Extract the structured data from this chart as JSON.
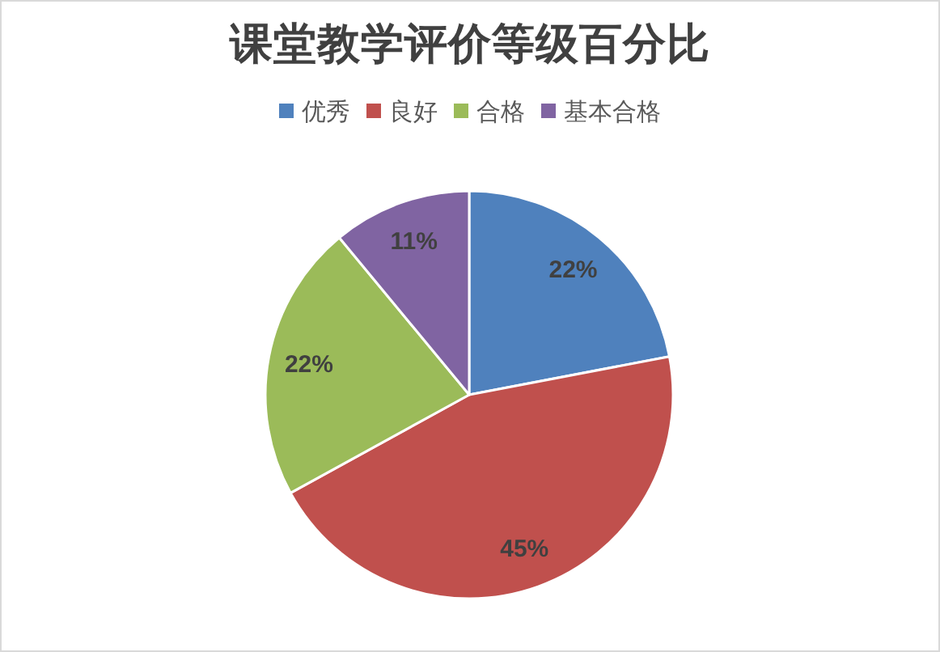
{
  "chart_data": {
    "type": "pie",
    "title": "课堂教学评价等级百分比",
    "categories": [
      "优秀",
      "良好",
      "合格",
      "基本合格"
    ],
    "values": [
      22,
      45,
      22,
      11
    ],
    "value_labels": [
      "22%",
      "45%",
      "22%",
      "11%"
    ],
    "colors": [
      "#4f81bd",
      "#c0504d",
      "#9bbb59",
      "#8064a2"
    ],
    "legend": "top"
  }
}
